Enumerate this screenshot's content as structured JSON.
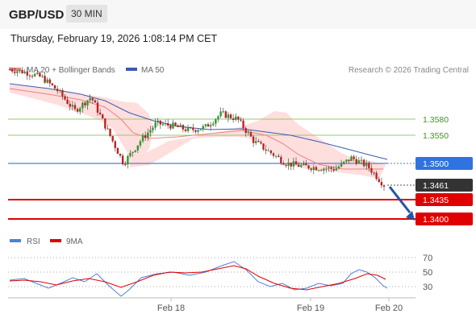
{
  "header": {
    "symbol": "GBP/USD",
    "timeframe": "30 MIN"
  },
  "datetime": "Thursday, February 19, 2026 1:08:14 PM CET",
  "legend": {
    "ma20_label": "MA 20 + Bollinger Bands",
    "ma50_label": "MA 50",
    "credit": "Research © 2026 Trading Central",
    "rsi_label": "RSI",
    "ma9_label": "9MA"
  },
  "colors": {
    "ma20": "#f08080",
    "ma50": "#3b5cad",
    "band": "#ffd6d6",
    "resistance": "#8fcf6a",
    "pivot": "#4f7fd6",
    "support": "#e00000",
    "price_tag": "#333333",
    "arrow": "#2355a6",
    "rsi": "#4f7fd6",
    "rsi_ma": "#e00000"
  },
  "levels": {
    "resistance": [
      "1.3580",
      "1.3550"
    ],
    "pivot": "1.3500",
    "current": "1.3461",
    "support": [
      "1.3435",
      "1.3400"
    ]
  },
  "rsi_axis": [
    "70",
    "50",
    "30"
  ],
  "x_axis": [
    "Feb 18",
    "Feb 19",
    "Feb 20"
  ],
  "chart_data": {
    "type": "line",
    "series": [
      {
        "name": "MA 20",
        "x": [
          0,
          20,
          40,
          60,
          80,
          100,
          120
        ],
        "y": [
          1.3668,
          1.3624,
          1.3592,
          1.3566,
          1.353,
          1.3492,
          1.35
        ]
      },
      {
        "name": "MA 50",
        "x": [
          0,
          20,
          40,
          60,
          80,
          100,
          120
        ],
        "y": [
          1.3665,
          1.364,
          1.36,
          1.3575,
          1.3555,
          1.353,
          1.35
        ]
      },
      {
        "name": "RSI",
        "x": [
          0,
          20,
          40,
          60,
          80,
          100,
          120
        ],
        "y": [
          43,
          37,
          53,
          64,
          40,
          44,
          31
        ]
      },
      {
        "name": "9MA",
        "x": [
          0,
          20,
          40,
          60,
          80,
          100,
          120
        ],
        "y": [
          44,
          40,
          52,
          58,
          45,
          40,
          38
        ]
      }
    ],
    "price_path": [
      1.367,
      1.3665,
      1.3655,
      1.363,
      1.3595,
      1.362,
      1.356,
      1.35,
      1.354,
      1.3572,
      1.3568,
      1.356,
      1.3565,
      1.359,
      1.358,
      1.354,
      1.352,
      1.35,
      1.3495,
      1.3492,
      1.349,
      1.351,
      1.3495,
      1.3461
    ]
  }
}
